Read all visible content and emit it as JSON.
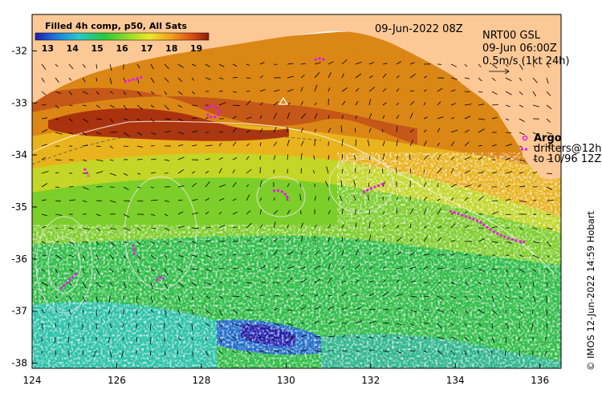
{
  "map": {
    "title_date": "09-Jun-2022 08Z",
    "colorbar": {
      "title": "Filled 4h comp, p50, All Sats",
      "ticks": [
        "13",
        "14",
        "15",
        "16",
        "17",
        "18",
        "19"
      ],
      "min": 12.5,
      "max": 19.5
    },
    "info": {
      "line1": "NRT00 GSL",
      "line2": "09-Jun 06:00Z",
      "line3": "0.5m/s (1kt 24h)"
    },
    "legend": {
      "title": "Argo",
      "line1": "drifters@12h",
      "line2": "to 10/96 12Z"
    },
    "credit": "© IMOS 12-Jun-2022 14:59 Hobart",
    "x_axis": {
      "ticks": [
        "124",
        "126",
        "128",
        "130",
        "132",
        "134",
        "136"
      ],
      "values": [
        124,
        126,
        128,
        130,
        132,
        134,
        136
      ],
      "range": [
        124,
        136.5
      ]
    },
    "y_axis": {
      "ticks": [
        "-32",
        "-33",
        "-34",
        "-35",
        "-36",
        "-37",
        "-38"
      ],
      "values": [
        -32,
        -33,
        -34,
        -35,
        -36,
        -37,
        -38
      ],
      "range": [
        -31.3,
        -38.1
      ]
    },
    "colors": {
      "land": "#fcc896",
      "drifter": "#e619e6",
      "contour": "#d8d8d8"
    }
  }
}
